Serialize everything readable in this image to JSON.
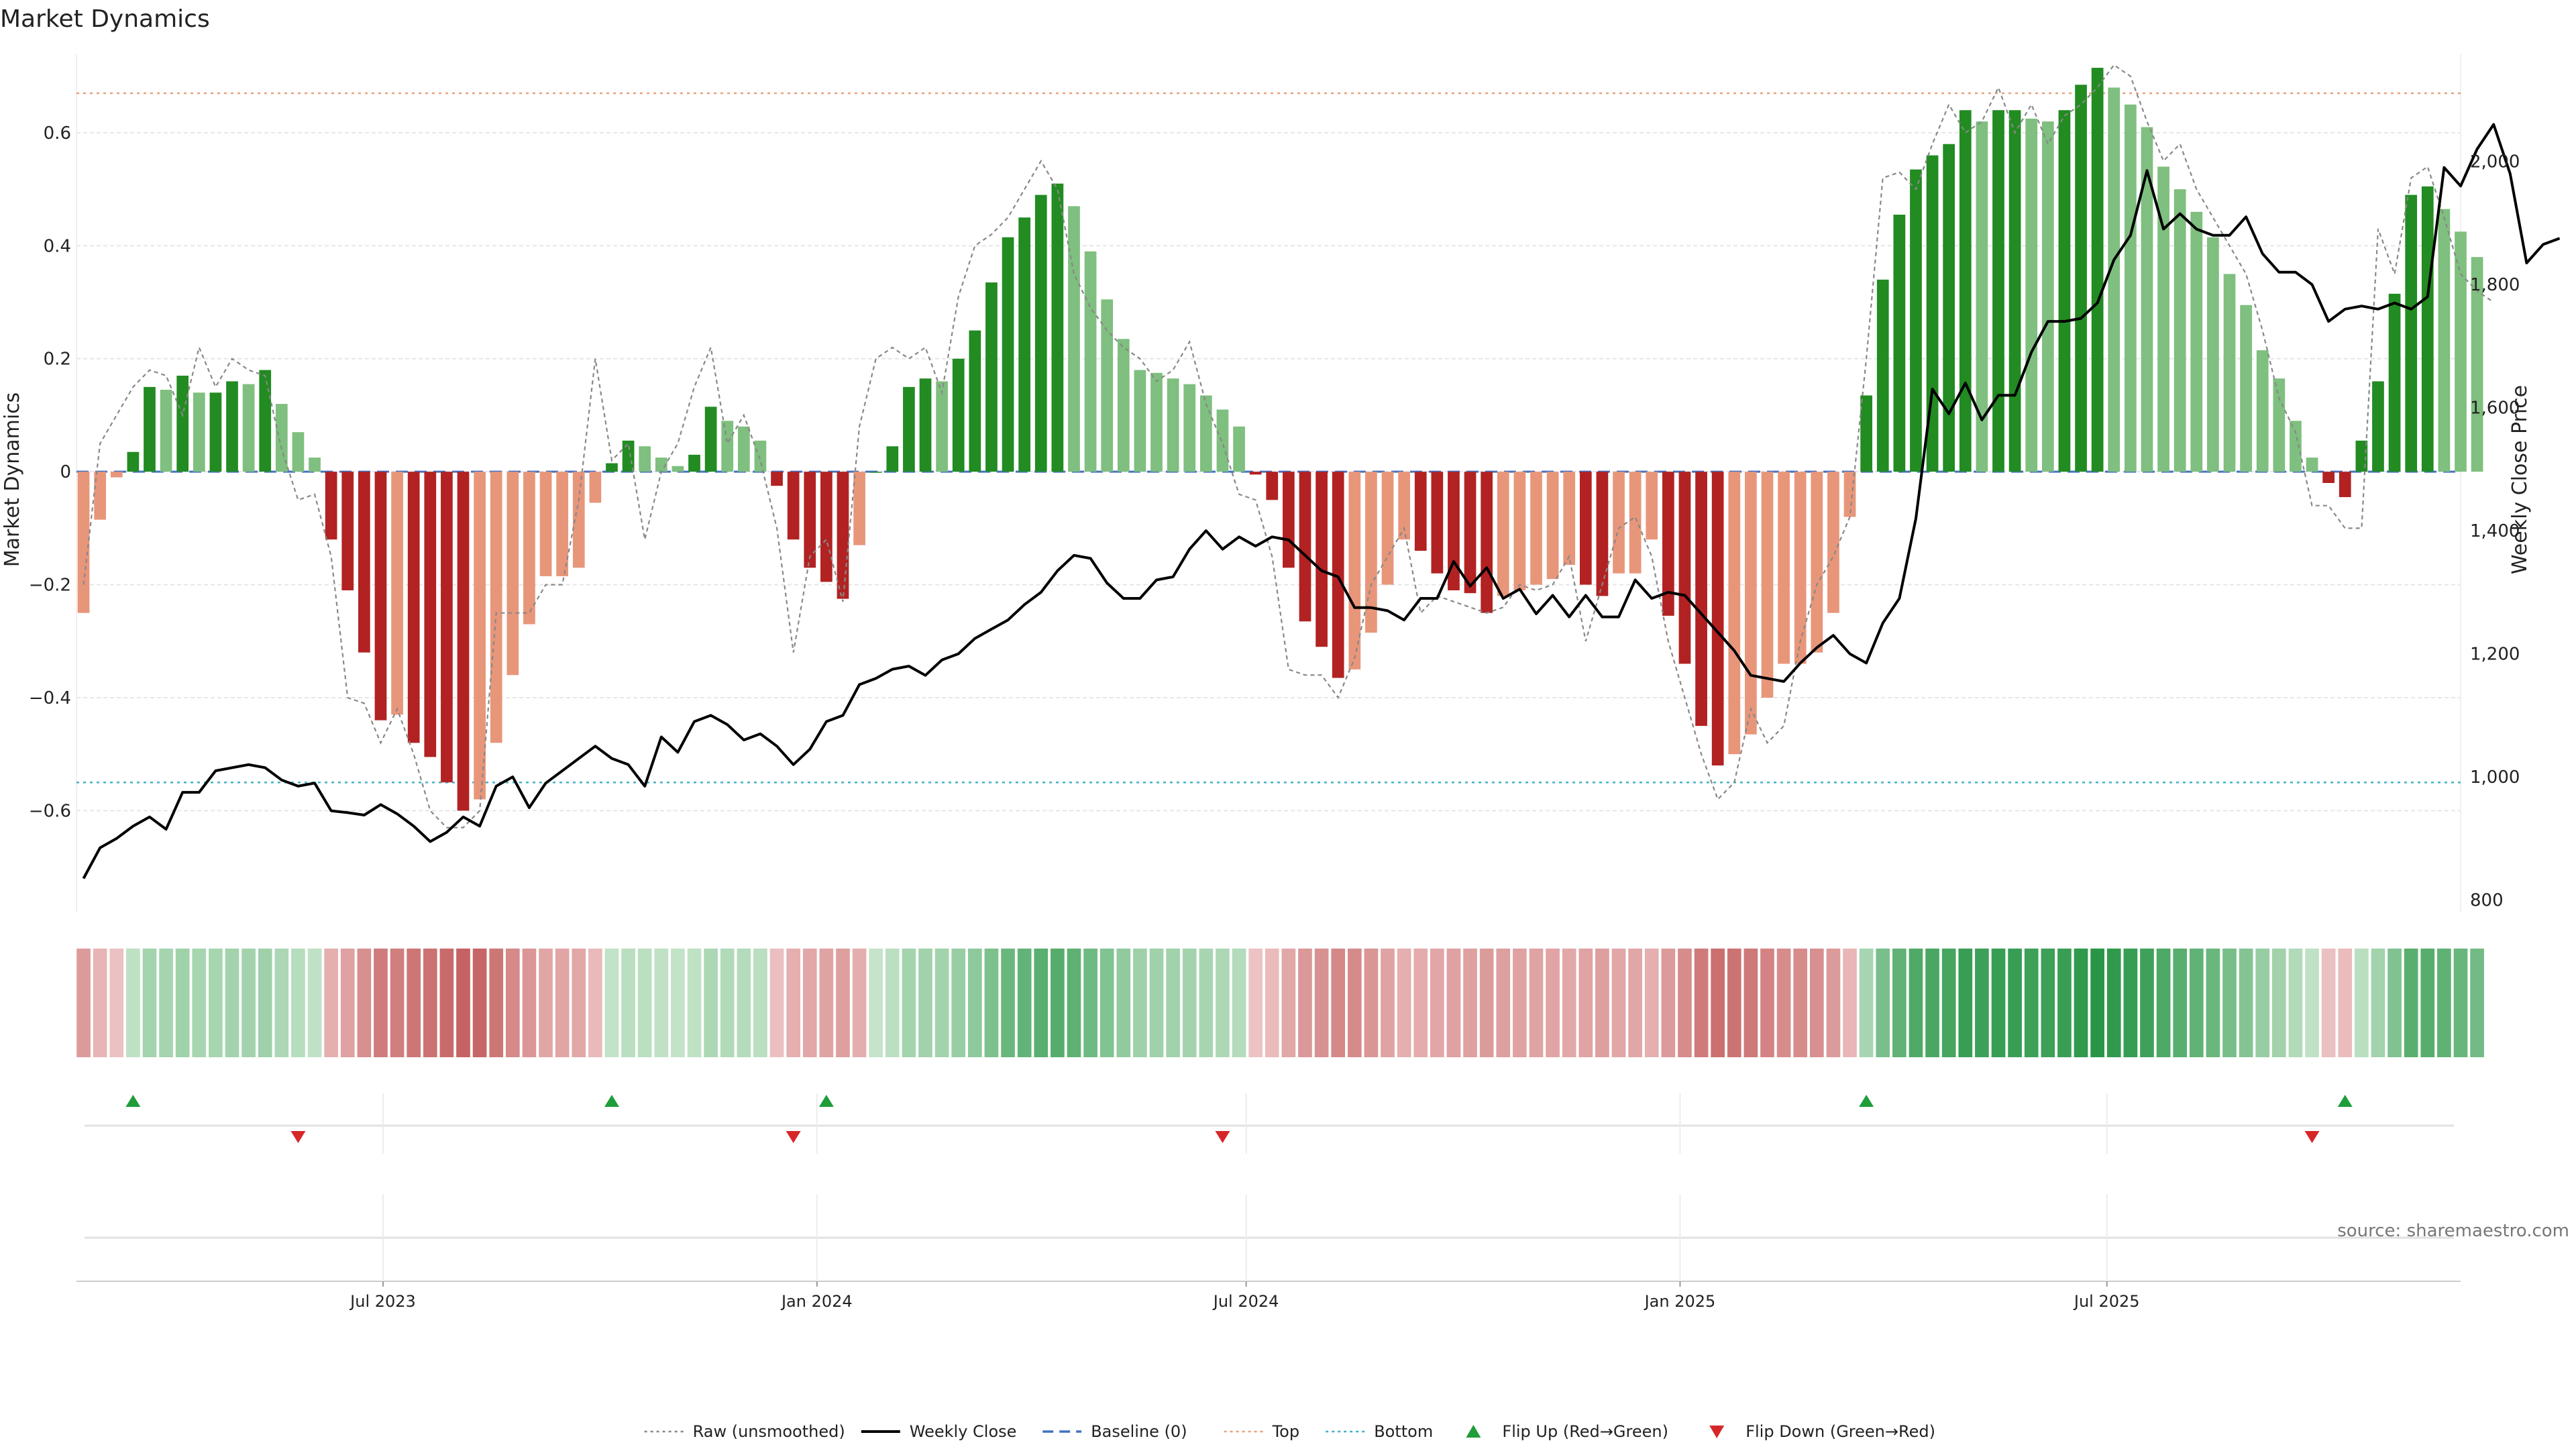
{
  "page": {
    "title": "Market Dynamics",
    "source": "source: sharemaestro.com"
  },
  "chart_data": {
    "type": "bar",
    "title": "Market Dynamics",
    "ylabel": "Market Dynamics",
    "y2label": "Weekly Close Price",
    "ylim": [
      -0.78,
      0.74
    ],
    "y2lim": [
      780,
      2175
    ],
    "yticks": [
      -0.6,
      -0.4,
      -0.2,
      0,
      0.2,
      0.4,
      0.6
    ],
    "yticklabels": [
      "−0.6",
      "−0.4",
      "−0.2",
      "0",
      "0.2",
      "0.4",
      "0.6"
    ],
    "y2ticks": [
      800,
      1000,
      1200,
      1400,
      1600,
      1800,
      2000
    ],
    "y2ticklabels": [
      "800",
      "1,000",
      "1,200",
      "1,400",
      "1,600",
      "1,800",
      "2,000"
    ],
    "x_range": [
      "2023-02-21",
      "2025-11-28"
    ],
    "x_ticks": [
      {
        "date": "2023-07-01",
        "label": "Jul 2023"
      },
      {
        "date": "2024-01-01",
        "label": "Jan 2024"
      },
      {
        "date": "2024-07-01",
        "label": "Jul 2024"
      },
      {
        "date": "2025-01-01",
        "label": "Jan 2025"
      },
      {
        "date": "2025-07-01",
        "label": "Jul 2025"
      }
    ],
    "start_date": "2023-02-24",
    "week_step_days": 7,
    "top_level": 0.67,
    "bottom_level": -0.55,
    "baseline": 0,
    "colors": {
      "strong_green": "#228b22",
      "light_green": "#7fbf7f",
      "strong_red": "#b22222",
      "light_red": "#e8967a",
      "close_line": "#000000",
      "raw_line": "#888888",
      "baseline": "#4472c4",
      "top": "#e8a07a",
      "bottom": "#40b0c8",
      "flip_up": "#1f9d3a",
      "flip_down": "#d62728"
    },
    "smoothed": [
      -0.25,
      -0.085,
      -0.01,
      0.035,
      0.15,
      0.145,
      0.17,
      0.14,
      0.14,
      0.16,
      0.155,
      0.18,
      0.12,
      0.07,
      0.025,
      -0.12,
      -0.21,
      -0.32,
      -0.44,
      -0.43,
      -0.48,
      -0.505,
      -0.55,
      -0.6,
      -0.58,
      -0.48,
      -0.36,
      -0.27,
      -0.185,
      -0.185,
      -0.17,
      -0.055,
      0.015,
      0.055,
      0.045,
      0.025,
      0.01,
      0.03,
      0.115,
      0.09,
      0.08,
      0.055,
      -0.025,
      -0.12,
      -0.17,
      -0.195,
      -0.225,
      -0.13,
      0.0,
      0.045,
      0.15,
      0.165,
      0.16,
      0.2,
      0.25,
      0.335,
      0.415,
      0.45,
      0.49,
      0.51,
      0.47,
      0.39,
      0.305,
      0.235,
      0.18,
      0.175,
      0.165,
      0.155,
      0.135,
      0.11,
      0.08,
      -0.005,
      -0.05,
      -0.17,
      -0.265,
      -0.31,
      -0.365,
      -0.35,
      -0.285,
      -0.2,
      -0.12,
      -0.14,
      -0.18,
      -0.21,
      -0.215,
      -0.25,
      -0.22,
      -0.21,
      -0.2,
      -0.19,
      -0.165,
      -0.2,
      -0.22,
      -0.18,
      -0.18,
      -0.12,
      -0.255,
      -0.34,
      -0.45,
      -0.52,
      -0.5,
      -0.465,
      -0.4,
      -0.34,
      -0.34,
      -0.32,
      -0.25,
      -0.08,
      0.135,
      0.34,
      0.455,
      0.535,
      0.56,
      0.58,
      0.64,
      0.62,
      0.64,
      0.64,
      0.625,
      0.62,
      0.64,
      0.685,
      0.715,
      0.68,
      0.65,
      0.61,
      0.54,
      0.5,
      0.46,
      0.415,
      0.35,
      0.295,
      0.215,
      0.165,
      0.09,
      0.025,
      -0.02,
      -0.045,
      0.055,
      0.16,
      0.315,
      0.49,
      0.505,
      0.465,
      0.425,
      0.38
    ],
    "raw": [
      -0.2,
      0.05,
      0.1,
      0.15,
      0.18,
      0.17,
      0.1,
      0.22,
      0.15,
      0.2,
      0.18,
      0.17,
      0.04,
      -0.05,
      -0.04,
      -0.15,
      -0.4,
      -0.41,
      -0.48,
      -0.42,
      -0.5,
      -0.6,
      -0.63,
      -0.63,
      -0.6,
      -0.25,
      -0.25,
      -0.25,
      -0.2,
      -0.2,
      -0.05,
      0.2,
      0.02,
      0.05,
      -0.12,
      0.0,
      0.05,
      0.15,
      0.22,
      0.05,
      0.1,
      0.02,
      -0.1,
      -0.32,
      -0.15,
      -0.12,
      -0.23,
      0.08,
      0.2,
      0.22,
      0.2,
      0.22,
      0.14,
      0.31,
      0.4,
      0.42,
      0.45,
      0.5,
      0.55,
      0.5,
      0.35,
      0.29,
      0.25,
      0.22,
      0.2,
      0.16,
      0.18,
      0.23,
      0.12,
      0.05,
      -0.04,
      -0.05,
      -0.15,
      -0.35,
      -0.36,
      -0.36,
      -0.4,
      -0.33,
      -0.2,
      -0.15,
      -0.1,
      -0.25,
      -0.22,
      -0.23,
      -0.24,
      -0.25,
      -0.24,
      -0.2,
      -0.21,
      -0.2,
      -0.15,
      -0.3,
      -0.2,
      -0.1,
      -0.08,
      -0.15,
      -0.3,
      -0.4,
      -0.5,
      -0.58,
      -0.55,
      -0.42,
      -0.48,
      -0.45,
      -0.3,
      -0.2,
      -0.15,
      -0.08,
      0.2,
      0.52,
      0.53,
      0.5,
      0.58,
      0.65,
      0.6,
      0.62,
      0.68,
      0.6,
      0.65,
      0.58,
      0.63,
      0.65,
      0.68,
      0.72,
      0.7,
      0.62,
      0.55,
      0.58,
      0.5,
      0.45,
      0.4,
      0.35,
      0.25,
      0.13,
      0.07,
      -0.06,
      -0.06,
      -0.1,
      -0.1,
      0.43,
      0.35,
      0.52,
      0.54,
      0.45,
      0.35,
      0.32,
      0.3
    ],
    "close": [
      835,
      885,
      900,
      920,
      935,
      915,
      975,
      975,
      1010,
      1015,
      1020,
      1015,
      995,
      985,
      990,
      945,
      942,
      938,
      955,
      940,
      920,
      895,
      910,
      935,
      920,
      985,
      1000,
      950,
      990,
      1010,
      1030,
      1050,
      1030,
      1020,
      985,
      1065,
      1040,
      1090,
      1100,
      1085,
      1060,
      1070,
      1050,
      1020,
      1045,
      1090,
      1100,
      1150,
      1160,
      1175,
      1180,
      1165,
      1190,
      1200,
      1225,
      1240,
      1255,
      1280,
      1300,
      1335,
      1360,
      1355,
      1315,
      1290,
      1290,
      1320,
      1325,
      1370,
      1400,
      1370,
      1390,
      1375,
      1390,
      1385,
      1360,
      1335,
      1325,
      1275,
      1275,
      1270,
      1255,
      1290,
      1290,
      1350,
      1310,
      1340,
      1290,
      1305,
      1265,
      1295,
      1260,
      1295,
      1260,
      1260,
      1320,
      1290,
      1300,
      1295,
      1265,
      1235,
      1205,
      1165,
      1160,
      1155,
      1185,
      1210,
      1230,
      1200,
      1185,
      1250,
      1290,
      1420,
      1630,
      1590,
      1640,
      1580,
      1620,
      1620,
      1690,
      1740,
      1740,
      1745,
      1770,
      1840,
      1880,
      1985,
      1890,
      1915,
      1890,
      1880,
      1880,
      1910,
      1850,
      1820,
      1820,
      1800,
      1740,
      1760,
      1765,
      1760,
      1770,
      1760,
      1780,
      1990,
      1960,
      2020,
      2060,
      1980,
      1835,
      1865,
      1875
    ],
    "flips_up": [
      "2023-03-17",
      "2023-10-06",
      "2024-01-05",
      "2025-03-21",
      "2025-10-10"
    ],
    "flips_down": [
      "2023-05-26",
      "2023-12-22",
      "2024-06-21",
      "2025-09-26"
    ],
    "legend": [
      {
        "label": "Raw (unsmoothed)",
        "kind": "dotted-line",
        "color": "#888888"
      },
      {
        "label": "Weekly Close",
        "kind": "line",
        "color": "#000000"
      },
      {
        "label": "Baseline (0)",
        "kind": "dashed-line",
        "color": "#4472c4"
      },
      {
        "label": "Top",
        "kind": "dotted-line",
        "color": "#e8a07a"
      },
      {
        "label": "Bottom",
        "kind": "dotted-line",
        "color": "#40b0c8"
      },
      {
        "label": "Flip Up (Red→Green)",
        "kind": "triangle-up",
        "color": "#1f9d3a"
      },
      {
        "label": "Flip Down (Green→Red)",
        "kind": "triangle-down",
        "color": "#d62728"
      }
    ],
    "legend_placement": "bottom-center",
    "grid": true
  }
}
